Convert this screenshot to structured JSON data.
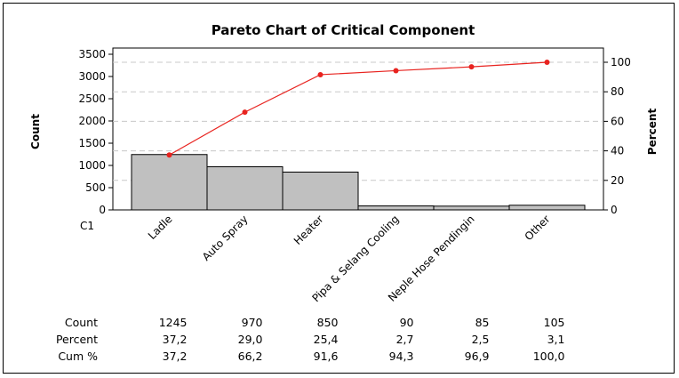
{
  "chart_data": {
    "type": "bar",
    "title": "Pareto Chart of Critical Component",
    "xlabel": "C1",
    "ylabel": "Count",
    "y2label": "Percent",
    "ylim": [
      0,
      3500
    ],
    "y2lim": [
      0,
      100
    ],
    "yticks": [
      "0",
      "500",
      "1000",
      "1500",
      "2000",
      "2500",
      "3000",
      "3500"
    ],
    "y2ticks": [
      "0",
      "20",
      "40",
      "60",
      "80",
      "100"
    ],
    "categories": [
      "Ladle",
      "Auto Spray",
      "Heater",
      "Pipa & Selang Cooling",
      "Neple Hose Pendingin",
      "Other"
    ],
    "series": [
      {
        "name": "Count",
        "values": [
          1245,
          970,
          850,
          90,
          85,
          105
        ]
      },
      {
        "name": "Cum %",
        "values": [
          37.2,
          66.2,
          91.6,
          94.3,
          96.9,
          100.0
        ]
      }
    ],
    "colors": {
      "bar": "#c0c0c0",
      "line": "#e8231f",
      "grid": "#c8c8c8",
      "plot_bg": "#ffffff"
    },
    "grid": true
  },
  "table": {
    "rows": [
      {
        "label": "Count",
        "values": [
          "1245",
          "970",
          "850",
          "90",
          "85",
          "105"
        ]
      },
      {
        "label": "Percent",
        "values": [
          "37,2",
          "29,0",
          "25,4",
          "2,7",
          "2,5",
          "3,1"
        ]
      },
      {
        "label": "Cum %",
        "values": [
          "37,2",
          "66,2",
          "91,6",
          "94,3",
          "96,9",
          "100,0"
        ]
      }
    ]
  }
}
